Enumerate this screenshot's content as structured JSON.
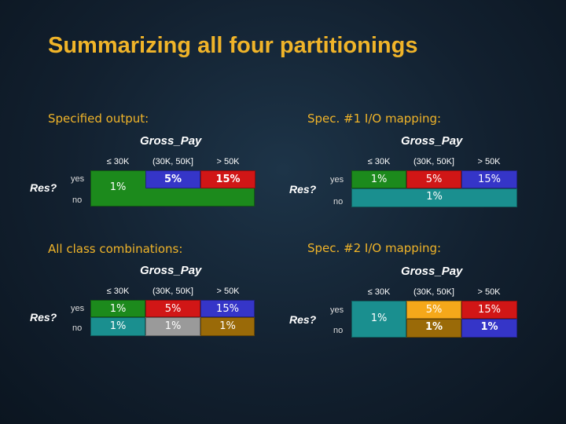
{
  "title": "Summarizing all four partitionings",
  "header_label": "Gross_Pay",
  "row_header": "Res?",
  "columns": [
    "≤ 30K",
    "(30K, 50K]",
    "> 50K"
  ],
  "rows": [
    "yes",
    "no"
  ],
  "panels": {
    "specified": {
      "label": "Specified output:",
      "cells": {
        "low": "1%",
        "mid_yes": "5%",
        "high_yes": "15%"
      }
    },
    "spec1": {
      "label": "Spec. #1 I/O mapping:",
      "cells": {
        "yes_low": "1%",
        "yes_mid": "5%",
        "yes_high": "15%",
        "no_all": "1%"
      }
    },
    "all": {
      "label": "All class combinations:",
      "cells": {
        "yes_low": "1%",
        "yes_mid": "5%",
        "yes_high": "15%",
        "no_low": "1%",
        "no_mid": "1%",
        "no_high": "1%"
      }
    },
    "spec2": {
      "label": "Spec. #2 I/O mapping:",
      "cells": {
        "low": "1%",
        "yes_mid": "5%",
        "yes_high": "15%",
        "no_mid": "1%",
        "no_high": "1%"
      }
    }
  },
  "colors": {
    "title": "#f0b429",
    "green": "#1c8a1c",
    "blue": "#3535c8",
    "red": "#d11616",
    "teal": "#1a8f8f",
    "gray": "#9a9a9a",
    "brown": "#9a6a08",
    "orange": "#f5a81a"
  }
}
